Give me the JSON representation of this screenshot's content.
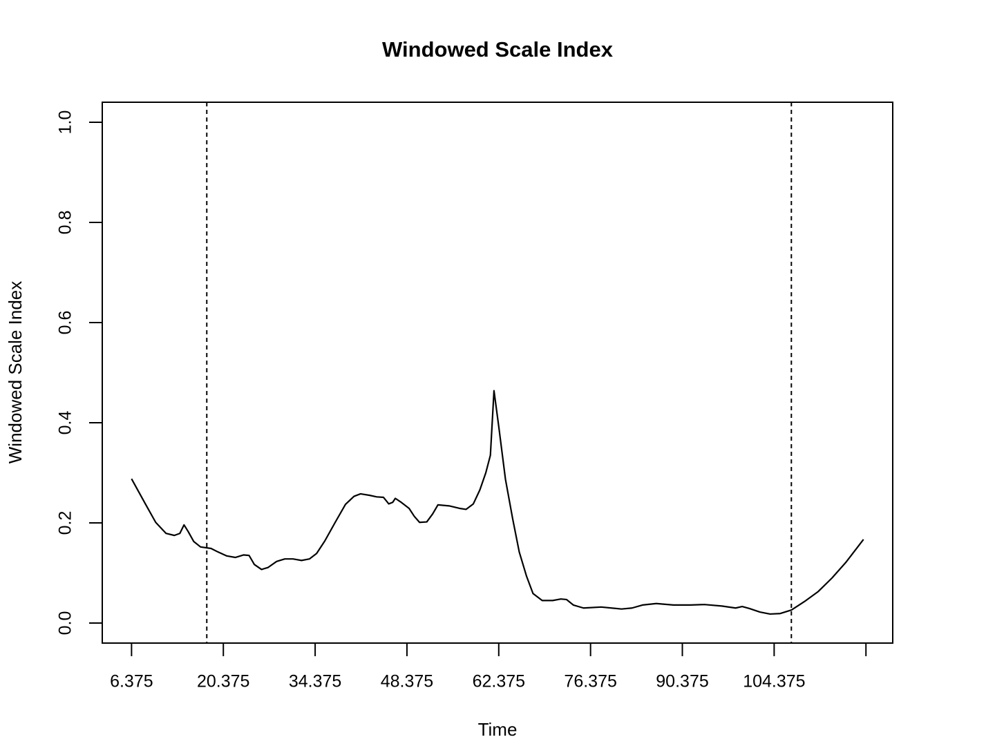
{
  "chart_data": {
    "type": "line",
    "title": "Windowed Scale Index",
    "x_label": "Time",
    "y_label": "Windowed Scale Index",
    "x": [
      6.375,
      8.48,
      10.06,
      11.64,
      12.9,
      13.74,
      14.38,
      15.0,
      15.85,
      16.9,
      18.5,
      19.55,
      20.9,
      22.2,
      23.45,
      24.3,
      25.1,
      26.2,
      27.2,
      28.5,
      29.75,
      31.0,
      32.3,
      33.5,
      34.6,
      35.85,
      37.43,
      39.0,
      40.3,
      41.3,
      42.7,
      43.75,
      44.8,
      45.6,
      46.2,
      46.6,
      47.4,
      48.7,
      49.5,
      50.3,
      51.4,
      52.3,
      53.1,
      54.8,
      56.4,
      57.4,
      58.5,
      59.5,
      60.4,
      61.1,
      61.65,
      62.4,
      63.4,
      64.5,
      65.5,
      66.6,
      67.6,
      69.0,
      70.6,
      71.85,
      72.7,
      73.75,
      75.3,
      78.0,
      81.1,
      82.7,
      84.3,
      86.4,
      89.0,
      91.6,
      93.75,
      96.4,
      98.5,
      99.5,
      100.6,
      102.2,
      103.75,
      105.3,
      107.0,
      109.0,
      111.1,
      113.2,
      115.3,
      118.0
    ],
    "series": [
      {
        "color": "#000000",
        "values": [
          0.288,
          0.238,
          0.201,
          0.179,
          0.175,
          0.179,
          0.196,
          0.183,
          0.163,
          0.152,
          0.149,
          0.142,
          0.134,
          0.131,
          0.136,
          0.135,
          0.117,
          0.107,
          0.111,
          0.123,
          0.128,
          0.128,
          0.125,
          0.128,
          0.139,
          0.164,
          0.201,
          0.237,
          0.253,
          0.258,
          0.255,
          0.252,
          0.251,
          0.238,
          0.241,
          0.249,
          0.242,
          0.229,
          0.213,
          0.201,
          0.202,
          0.218,
          0.236,
          0.234,
          0.229,
          0.227,
          0.238,
          0.266,
          0.3,
          0.335,
          0.464,
          0.39,
          0.287,
          0.208,
          0.142,
          0.094,
          0.059,
          0.045,
          0.045,
          0.048,
          0.047,
          0.036,
          0.03,
          0.032,
          0.028,
          0.03,
          0.036,
          0.039,
          0.036,
          0.036,
          0.037,
          0.034,
          0.03,
          0.033,
          0.029,
          0.022,
          0.018,
          0.019,
          0.026,
          0.043,
          0.063,
          0.09,
          0.121,
          0.167
        ]
      }
    ],
    "vlines": [
      17.85,
      107.0
    ],
    "xlim": [
      1.91,
      122.46
    ],
    "ylim": [
      -0.04,
      1.04
    ],
    "xticks": [
      6.375,
      20.375,
      34.375,
      48.375,
      62.375,
      76.375,
      90.375,
      104.375,
      {
        "value": 118.375,
        "label": null
      }
    ],
    "yticks": [
      {
        "value": 0,
        "label": "0.0"
      },
      {
        "value": 0.2,
        "label": "0.2"
      },
      {
        "value": 0.4,
        "label": "0.4"
      },
      {
        "value": 0.6,
        "label": "0.6"
      },
      {
        "value": 0.8,
        "label": "0.8"
      },
      {
        "value": 1,
        "label": "1.0"
      }
    ]
  }
}
